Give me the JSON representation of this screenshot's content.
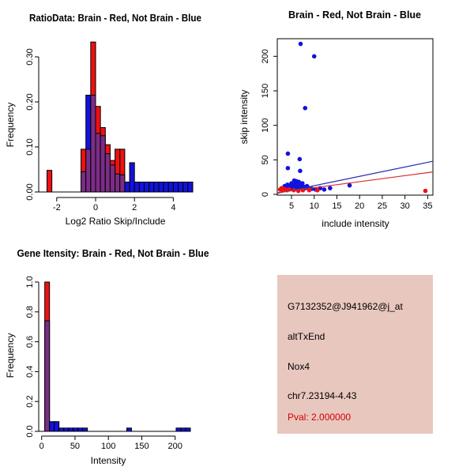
{
  "colors": {
    "red": "#F01010",
    "blue": "#1212DE",
    "overlap_purple": "#7B2D86",
    "scatter_red": "#F01010",
    "scatter_blue": "#1212DE",
    "line_red": "#DC2828",
    "line_blue": "#2828B4",
    "panel_bg": "#E8C7BF",
    "pval_red": "#D40000",
    "axis_black": "#000000"
  },
  "chart_data": [
    {
      "id": "hist_ratio",
      "type": "bar",
      "subtype": "overlaid-histogram",
      "title": "RatioData: Brain - Red, Not Brain - Blue",
      "xlabel": "Log2 Ratio Skip/Include",
      "ylabel": "Frequency",
      "series_legend": {
        "red": "Brain",
        "blue": "Not Brain",
        "purple": "overlap"
      },
      "xlim": [
        -2.8,
        5.05
      ],
      "ylim": [
        0,
        0.34
      ],
      "grid": false,
      "bin_width": 0.25,
      "xticks": [
        {
          "v": -2,
          "label": "-2"
        },
        {
          "v": 0,
          "label": "0"
        },
        {
          "v": 2,
          "label": "2"
        },
        {
          "v": 4,
          "label": "4"
        }
      ],
      "yticks": [
        {
          "v": 0,
          "label": "0.00"
        },
        {
          "v": 0.1,
          "label": "0.10"
        },
        {
          "v": 0.2,
          "label": "0.20"
        },
        {
          "v": 0.3,
          "label": "0.30"
        }
      ],
      "bins": [
        {
          "x0": -2.5,
          "red": 0.048,
          "blue": 0
        },
        {
          "x0": -0.75,
          "red": 0.095,
          "blue": 0.045
        },
        {
          "x0": -0.5,
          "red": 0.095,
          "blue": 0.215
        },
        {
          "x0": -0.25,
          "red": 0.333,
          "blue": 0.215
        },
        {
          "x0": 0,
          "red": 0.19,
          "blue": 0.13
        },
        {
          "x0": 0.25,
          "red": 0.143,
          "blue": 0.125
        },
        {
          "x0": 0.5,
          "red": 0.105,
          "blue": 0.085
        },
        {
          "x0": 0.75,
          "red": 0.07,
          "blue": 0.06
        },
        {
          "x0": 1,
          "red": 0.095,
          "blue": 0.04
        },
        {
          "x0": 1.25,
          "red": 0.095,
          "blue": 0.038
        },
        {
          "x0": 1.5,
          "red": 0,
          "blue": 0.022
        },
        {
          "x0": 1.75,
          "red": 0,
          "blue": 0.065
        },
        {
          "x0": 2,
          "red": 0,
          "blue": 0.022
        },
        {
          "x0": 2.25,
          "red": 0,
          "blue": 0.022
        },
        {
          "x0": 2.5,
          "red": 0,
          "blue": 0.022
        },
        {
          "x0": 2.75,
          "red": 0,
          "blue": 0.022
        },
        {
          "x0": 3,
          "red": 0,
          "blue": 0.022
        },
        {
          "x0": 3.25,
          "red": 0,
          "blue": 0.022
        },
        {
          "x0": 3.5,
          "red": 0,
          "blue": 0.022
        },
        {
          "x0": 3.75,
          "red": 0,
          "blue": 0.022
        },
        {
          "x0": 4,
          "red": 0,
          "blue": 0.022
        },
        {
          "x0": 4.25,
          "red": 0,
          "blue": 0.022
        },
        {
          "x0": 4.5,
          "red": 0,
          "blue": 0.022
        },
        {
          "x0": 4.75,
          "red": 0,
          "blue": 0.022
        }
      ]
    },
    {
      "id": "scatter",
      "type": "scatter",
      "title": "Brain - Red, Not Brain - Blue",
      "xlabel": "include intensity",
      "ylabel": "skip intensity",
      "xlim": [
        1.85,
        36.2
      ],
      "ylim": [
        -1,
        225
      ],
      "grid": false,
      "xticks": [
        {
          "v": 5,
          "label": "5"
        },
        {
          "v": 10,
          "label": "10"
        },
        {
          "v": 15,
          "label": "15"
        },
        {
          "v": 20,
          "label": "20"
        },
        {
          "v": 25,
          "label": "25"
        },
        {
          "v": 30,
          "label": "30"
        },
        {
          "v": 35,
          "label": "35"
        }
      ],
      "yticks": [
        {
          "v": 0,
          "label": "0"
        },
        {
          "v": 50,
          "label": "50"
        },
        {
          "v": 100,
          "label": "100"
        },
        {
          "v": 150,
          "label": "150"
        },
        {
          "v": 200,
          "label": "200"
        }
      ],
      "series": [
        {
          "name": "Not Brain",
          "color_key": "scatter_blue",
          "points": [
            [
              7,
              218
            ],
            [
              10,
              200
            ],
            [
              8,
              125
            ],
            [
              4.2,
              59
            ],
            [
              6.8,
              51
            ],
            [
              4.2,
              38
            ],
            [
              6.9,
              34
            ],
            [
              5.6,
              20
            ],
            [
              6.1,
              19
            ],
            [
              6.6,
              18
            ],
            [
              3.5,
              12
            ],
            [
              3.8,
              9
            ],
            [
              4.1,
              14
            ],
            [
              4.4,
              10
            ],
            [
              4.7,
              12
            ],
            [
              5,
              16
            ],
            [
              5,
              9
            ],
            [
              5.3,
              13
            ],
            [
              5.6,
              10
            ],
            [
              5.9,
              15
            ],
            [
              6.2,
              11
            ],
            [
              6.5,
              9
            ],
            [
              6.8,
              13
            ],
            [
              7.1,
              10
            ],
            [
              7.4,
              16
            ],
            [
              7.7,
              11
            ],
            [
              8,
              9
            ],
            [
              8.4,
              12
            ],
            [
              8.7,
              9
            ],
            [
              9.5,
              8
            ],
            [
              10.3,
              7
            ],
            [
              11.3,
              9
            ],
            [
              12.2,
              7
            ],
            [
              13.5,
              9
            ],
            [
              17.8,
              13
            ]
          ]
        },
        {
          "name": "Brain",
          "color_key": "scatter_red",
          "points": [
            [
              2.5,
              7
            ],
            [
              2.8,
              9
            ],
            [
              3.1,
              6
            ],
            [
              3.3,
              8
            ],
            [
              3.6,
              7
            ],
            [
              4,
              6
            ],
            [
              4.5,
              7
            ],
            [
              5.5,
              6
            ],
            [
              6.5,
              5
            ],
            [
              7.5,
              6
            ],
            [
              8.9,
              6
            ],
            [
              10.7,
              6
            ],
            [
              34.5,
              5
            ]
          ]
        }
      ],
      "fit_lines": [
        {
          "color_key": "line_blue",
          "x1": 1.85,
          "y1": 1.5,
          "x2": 36.2,
          "y2": 48
        },
        {
          "color_key": "line_red",
          "x1": 1.85,
          "y1": 2.5,
          "x2": 36.2,
          "y2": 32.5
        }
      ]
    },
    {
      "id": "hist_gene",
      "type": "bar",
      "subtype": "overlaid-histogram",
      "title": "Gene Itensity: Brain - Red, Not Brain - Blue",
      "xlabel": "Intensity",
      "ylabel": "Frequency",
      "xlim": [
        -5,
        228
      ],
      "ylim": [
        0,
        1
      ],
      "grid": false,
      "xticks": [
        {
          "v": 0,
          "label": "0"
        },
        {
          "v": 50,
          "label": "50"
        },
        {
          "v": 100,
          "label": "100"
        },
        {
          "v": 150,
          "label": "150"
        },
        {
          "v": 200,
          "label": "200"
        }
      ],
      "yticks": [
        {
          "v": 0,
          "label": "0.0"
        },
        {
          "v": 0.2,
          "label": "0.2"
        },
        {
          "v": 0.4,
          "label": "0.4"
        },
        {
          "v": 0.6,
          "label": "0.6"
        },
        {
          "v": 0.8,
          "label": "0.8"
        },
        {
          "v": 1,
          "label": "1.0"
        }
      ],
      "bins": [
        {
          "x0": 4.7,
          "x1": 11.8,
          "red": 1.0,
          "blue": 0.74
        },
        {
          "x0": 11.8,
          "x1": 18.9,
          "red": 0,
          "blue": 0.065
        },
        {
          "x0": 18.9,
          "x1": 26,
          "red": 0,
          "blue": 0.065
        },
        {
          "x0": 26,
          "x1": 33.1,
          "red": 0,
          "blue": 0.022
        },
        {
          "x0": 33.1,
          "x1": 40.2,
          "red": 0,
          "blue": 0.022
        },
        {
          "x0": 40.2,
          "x1": 47.3,
          "red": 0,
          "blue": 0.022
        },
        {
          "x0": 47.3,
          "x1": 54.4,
          "red": 0,
          "blue": 0.022
        },
        {
          "x0": 54.4,
          "x1": 61.5,
          "red": 0,
          "blue": 0.022
        },
        {
          "x0": 61.5,
          "x1": 68.6,
          "red": 0,
          "blue": 0.022
        },
        {
          "x0": 127.5,
          "x1": 134.6,
          "red": 0,
          "blue": 0.022
        },
        {
          "x0": 201.5,
          "x1": 208.6,
          "red": 0,
          "blue": 0.022
        },
        {
          "x0": 208.6,
          "x1": 215.7,
          "red": 0,
          "blue": 0.022
        },
        {
          "x0": 215.7,
          "x1": 222.8,
          "red": 0,
          "blue": 0.022
        }
      ]
    }
  ],
  "info_panel": {
    "probe_id": "G7132352@J941962@j_at",
    "event_type": "altTxEnd",
    "gene": "Nox4",
    "location": "chr7.23194-4.43",
    "pval": "Pval: 2.000000"
  }
}
